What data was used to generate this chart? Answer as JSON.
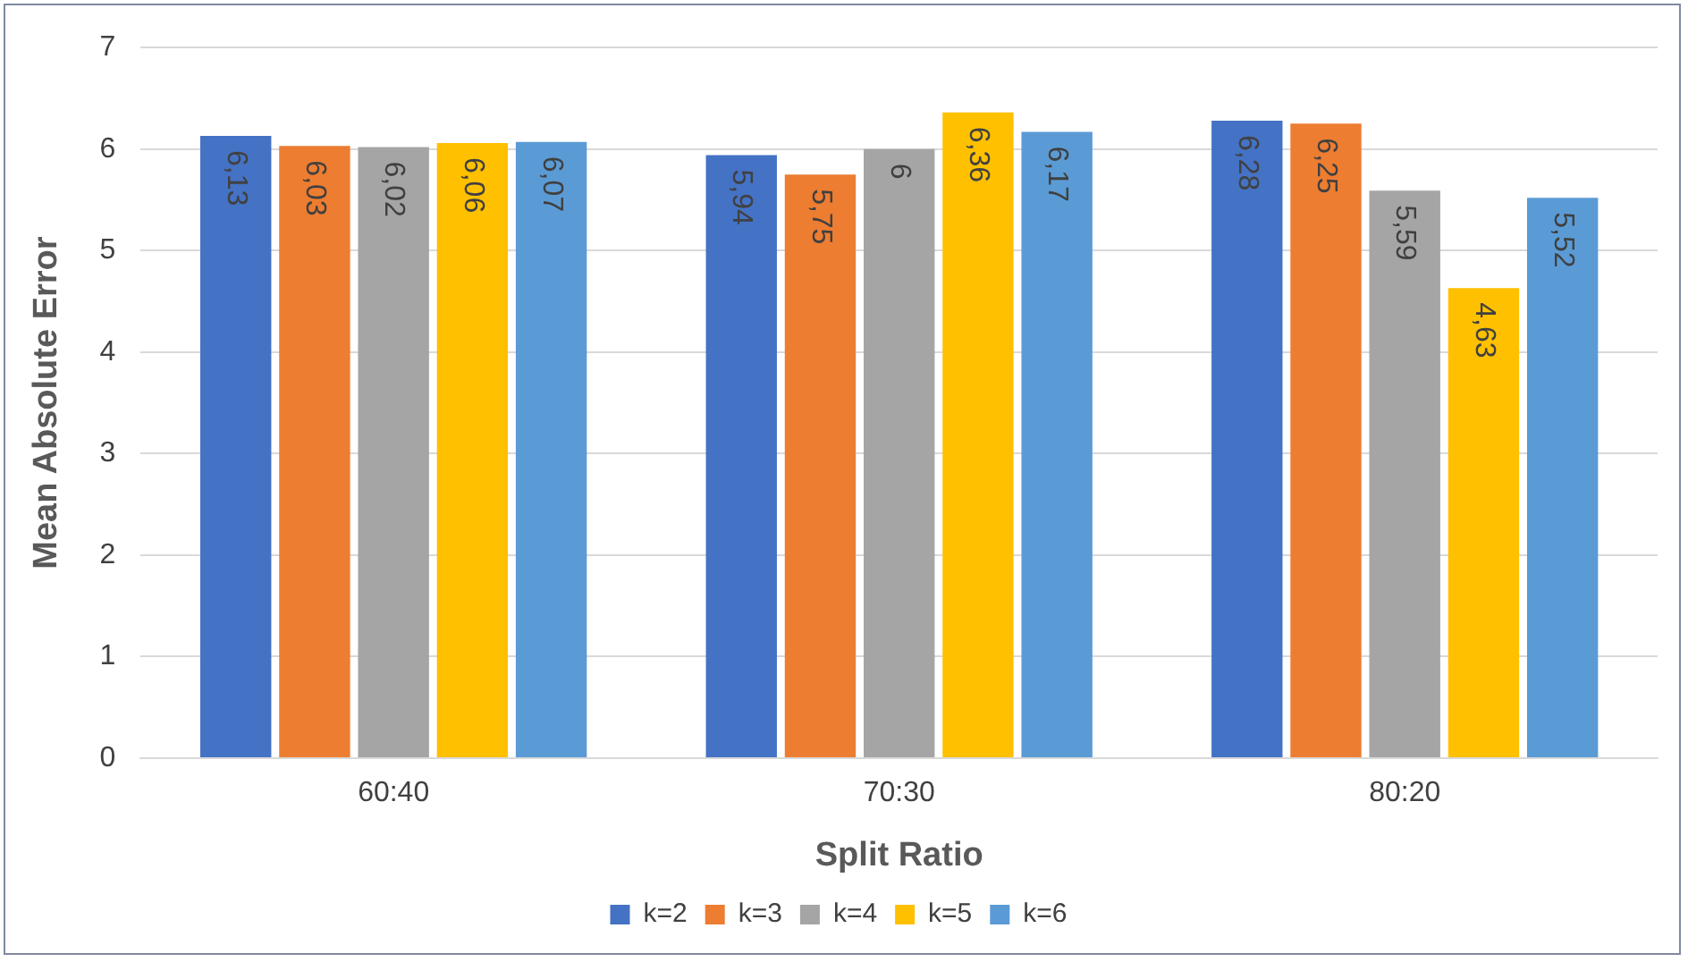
{
  "chart_data": {
    "type": "bar",
    "xlabel": "Split Ratio",
    "ylabel": "Mean Absolute Error",
    "categories": [
      "60:40",
      "70:30",
      "80:20"
    ],
    "series": [
      {
        "name": "k=2",
        "color": "#4472c4",
        "values": [
          6.13,
          5.94,
          6.28
        ],
        "value_labels": [
          "6,13",
          "5,94",
          "6,28"
        ]
      },
      {
        "name": "k=3",
        "color": "#ed7d31",
        "values": [
          6.03,
          5.75,
          6.25
        ],
        "value_labels": [
          "6,03",
          "5,75",
          "6,25"
        ]
      },
      {
        "name": "k=4",
        "color": "#a5a5a5",
        "values": [
          6.02,
          6,
          5.59
        ],
        "value_labels": [
          "6,02",
          "6",
          "5,59"
        ]
      },
      {
        "name": "k=5",
        "color": "#ffc000",
        "values": [
          6.06,
          6.36,
          4.63
        ],
        "value_labels": [
          "6,06",
          "6,36",
          "4,63"
        ]
      },
      {
        "name": "k=6",
        "color": "#5b9bd5",
        "values": [
          6.07,
          6.17,
          5.52
        ],
        "value_labels": [
          "6,07",
          "6,17",
          "5,52"
        ]
      }
    ],
    "ylim": [
      0,
      7
    ],
    "yticks": [
      0,
      1,
      2,
      3,
      4,
      5,
      6,
      7
    ],
    "grid": "y",
    "legend": "bottom"
  }
}
